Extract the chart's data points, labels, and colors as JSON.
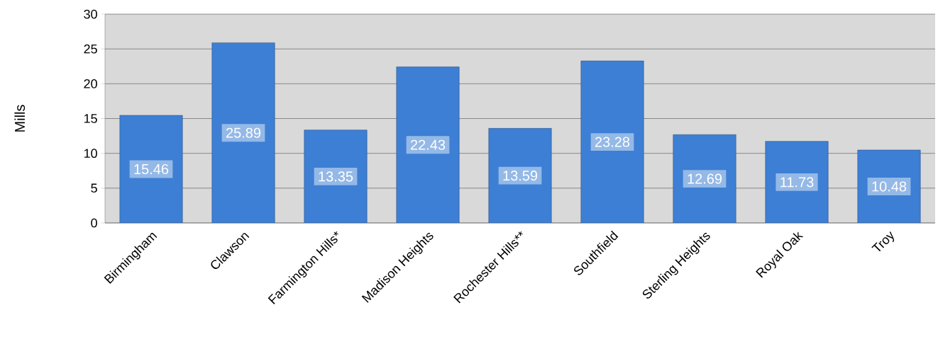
{
  "chart_data": {
    "type": "bar",
    "ylabel": "Mills",
    "categories": [
      "Birmingham",
      "Clawson",
      "Farmington Hills*",
      "Madison Heights",
      "Rochester Hills**",
      "Southfield",
      "Sterling Heights",
      "Royal Oak",
      "Troy"
    ],
    "values": [
      15.46,
      25.89,
      13.35,
      22.43,
      13.59,
      23.28,
      12.69,
      11.73,
      10.48
    ],
    "color": "#3d7fd4",
    "ylim": [
      0,
      30
    ],
    "yticks": [
      0,
      5,
      10,
      15,
      20,
      25,
      30
    ],
    "grid": "y",
    "data_labels": true
  }
}
